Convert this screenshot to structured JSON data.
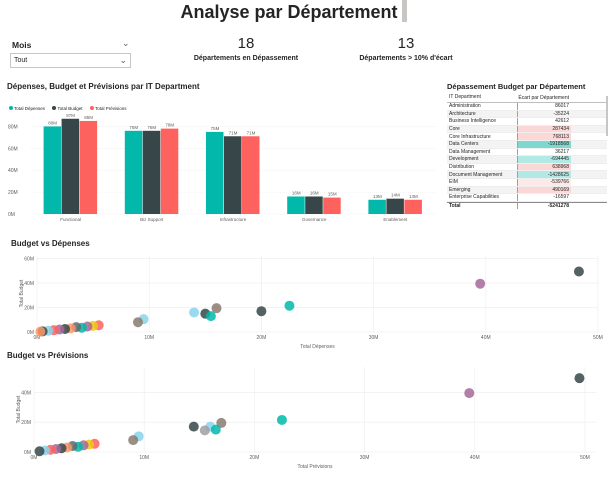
{
  "header": {
    "title": "Analyse par Département"
  },
  "slicer": {
    "label": "Mois",
    "value": "Tout"
  },
  "kpis": [
    {
      "value": "18",
      "label": "Départements en Dépassement"
    },
    {
      "value": "13",
      "label": "Départements > 10% d'écart"
    }
  ],
  "colors": {
    "depenses": "#01b8aa",
    "budget": "#374649",
    "previsions": "#fd625e"
  },
  "bar_section": {
    "title": "Dépenses, Budget et Prévisions par IT Department",
    "legend": [
      "Total Dépenses",
      "Total Budget",
      "Total Prévisions"
    ]
  },
  "table": {
    "title": "Dépassement Budget par Département",
    "columns": [
      "IT Department",
      "Écart par Département"
    ],
    "rows": [
      {
        "name": "Administration",
        "value": "86017",
        "highlight": "none"
      },
      {
        "name": "Architecture",
        "value": "-35224",
        "highlight": "none"
      },
      {
        "name": "Business Intelligence",
        "value": "42612",
        "highlight": "none"
      },
      {
        "name": "Core",
        "value": "287434",
        "highlight": "pink"
      },
      {
        "name": "Core Infrastructure",
        "value": "768113",
        "highlight": "pink"
      },
      {
        "name": "Data Centers",
        "value": "-1918568",
        "highlight": "teal-strong"
      },
      {
        "name": "Data Management",
        "value": "36217",
        "highlight": "none"
      },
      {
        "name": "Development",
        "value": "-694445",
        "highlight": "teal"
      },
      {
        "name": "Distribution",
        "value": "638968",
        "highlight": "pink"
      },
      {
        "name": "Document Management",
        "value": "-1428625",
        "highlight": "teal"
      },
      {
        "name": "EIM",
        "value": "-539766",
        "highlight": "pink-light"
      },
      {
        "name": "Emerging",
        "value": "490169",
        "highlight": "pink"
      },
      {
        "name": "Enterprise Capabilities",
        "value": "-16597",
        "highlight": "none"
      }
    ],
    "total": {
      "name": "Total",
      "value": "-5241278"
    }
  },
  "scatter1": {
    "title": "Budget vs Dépenses",
    "xlabel": "Total Dépenses",
    "ylabel": "Total Budget"
  },
  "scatter2": {
    "title": "Budget vs Prévisions",
    "xlabel": "Total Prévisions",
    "ylabel": "Total Budget"
  },
  "chart_data": [
    {
      "type": "bar",
      "title": "Dépenses, Budget et Prévisions par IT Department",
      "categories": [
        "Functional",
        "Biz Support",
        "Infrastructure",
        "Governance",
        "Enablement"
      ],
      "series": [
        {
          "name": "Total Dépenses",
          "color": "#01b8aa",
          "values": [
            80,
            76,
            75,
            16,
            13
          ],
          "labels": [
            "80M",
            "76M",
            "75M",
            "16M",
            "13M"
          ]
        },
        {
          "name": "Total Budget",
          "color": "#374649",
          "values": [
            87,
            76,
            71,
            16,
            14
          ],
          "labels": [
            "87M",
            "76M",
            "71M",
            "16M",
            "14M"
          ]
        },
        {
          "name": "Total Prévisions",
          "color": "#fd625e",
          "values": [
            85,
            78,
            71,
            15,
            13
          ],
          "labels": [
            "85M",
            "78M",
            "71M",
            "15M",
            "13M"
          ]
        }
      ],
      "yticks": [
        "0M",
        "20M",
        "40M",
        "60M",
        "80M"
      ],
      "ylim": [
        0,
        95
      ],
      "xlabel": "",
      "ylabel": ""
    },
    {
      "type": "scatter",
      "title": "Budget vs Dépenses",
      "xlabel": "Total Dépenses",
      "ylabel": "Total Budget",
      "xticks": [
        "0M",
        "10M",
        "20M",
        "30M",
        "40M",
        "50M"
      ],
      "yticks": [
        "0M",
        "20M",
        "40M",
        "60M"
      ],
      "xlim": [
        0,
        50
      ],
      "ylim": [
        0,
        63
      ],
      "points": [
        {
          "x": 48.3,
          "y": 49.5,
          "color": "#374649"
        },
        {
          "x": 39.5,
          "y": 39.5,
          "color": "#a66999"
        },
        {
          "x": 22.5,
          "y": 21.5,
          "color": "#01b8aa"
        },
        {
          "x": 20.0,
          "y": 17.0,
          "color": "#374649"
        },
        {
          "x": 16.0,
          "y": 19.5,
          "color": "#8a7a6e"
        },
        {
          "x": 14.0,
          "y": 16.0,
          "color": "#8ad4eb"
        },
        {
          "x": 15.0,
          "y": 15.0,
          "color": "#374649"
        },
        {
          "x": 15.5,
          "y": 13.0,
          "color": "#01b8aa"
        },
        {
          "x": 9.5,
          "y": 10.5,
          "color": "#8ad4eb"
        },
        {
          "x": 9.0,
          "y": 8.0,
          "color": "#8a7a6e"
        },
        {
          "x": 5.5,
          "y": 5.5,
          "color": "#fd625e"
        },
        {
          "x": 5.0,
          "y": 5.0,
          "color": "#f2c80f"
        },
        {
          "x": 4.5,
          "y": 4.5,
          "color": "#a66999"
        },
        {
          "x": 4.0,
          "y": 3.5,
          "color": "#01b8aa"
        },
        {
          "x": 3.5,
          "y": 4.0,
          "color": "#5f6b6d"
        },
        {
          "x": 3.0,
          "y": 3.0,
          "color": "#fe9666"
        },
        {
          "x": 2.5,
          "y": 2.5,
          "color": "#374649"
        },
        {
          "x": 2.0,
          "y": 2.0,
          "color": "#a66999"
        },
        {
          "x": 1.5,
          "y": 1.5,
          "color": "#fd625e"
        },
        {
          "x": 1.0,
          "y": 1.0,
          "color": "#8ad4eb"
        },
        {
          "x": 0.5,
          "y": 0.5,
          "color": "#374649"
        },
        {
          "x": 0.3,
          "y": 0.3,
          "color": "#fe9666"
        }
      ]
    },
    {
      "type": "scatter",
      "title": "Budget vs Prévisions",
      "xlabel": "Total Prévisions",
      "ylabel": "Total Budget",
      "xticks": [
        "0M",
        "10M",
        "20M",
        "30M",
        "40M",
        "50M"
      ],
      "yticks": [
        "0M",
        "20M",
        "40M"
      ],
      "xlim": [
        0,
        51
      ],
      "ylim": [
        0,
        57
      ],
      "points": [
        {
          "x": 49.5,
          "y": 49.5,
          "color": "#374649"
        },
        {
          "x": 39.5,
          "y": 39.5,
          "color": "#a66999"
        },
        {
          "x": 22.5,
          "y": 21.5,
          "color": "#01b8aa"
        },
        {
          "x": 17.0,
          "y": 19.5,
          "color": "#8a7a6e"
        },
        {
          "x": 14.5,
          "y": 17.0,
          "color": "#374649"
        },
        {
          "x": 16.0,
          "y": 17.0,
          "color": "#8ad4eb"
        },
        {
          "x": 15.5,
          "y": 14.5,
          "color": "#a0a0a0"
        },
        {
          "x": 16.5,
          "y": 15.0,
          "color": "#01b8aa"
        },
        {
          "x": 9.5,
          "y": 10.5,
          "color": "#8ad4eb"
        },
        {
          "x": 9.0,
          "y": 8.0,
          "color": "#8a7a6e"
        },
        {
          "x": 5.5,
          "y": 5.5,
          "color": "#fd625e"
        },
        {
          "x": 5.0,
          "y": 5.0,
          "color": "#f2c80f"
        },
        {
          "x": 4.5,
          "y": 4.5,
          "color": "#a66999"
        },
        {
          "x": 4.0,
          "y": 3.5,
          "color": "#01b8aa"
        },
        {
          "x": 3.5,
          "y": 4.0,
          "color": "#5f6b6d"
        },
        {
          "x": 3.0,
          "y": 3.0,
          "color": "#fe9666"
        },
        {
          "x": 2.5,
          "y": 2.5,
          "color": "#374649"
        },
        {
          "x": 2.0,
          "y": 2.0,
          "color": "#a66999"
        },
        {
          "x": 1.5,
          "y": 1.5,
          "color": "#fd625e"
        },
        {
          "x": 1.0,
          "y": 1.0,
          "color": "#8ad4eb"
        },
        {
          "x": 0.5,
          "y": 0.5,
          "color": "#374649"
        }
      ]
    }
  ]
}
